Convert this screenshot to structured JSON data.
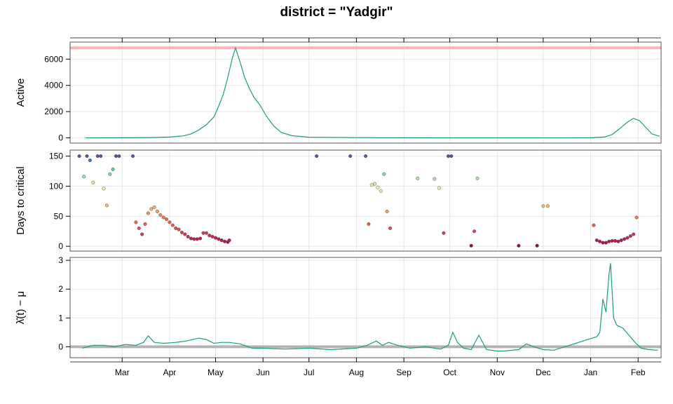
{
  "title": "district = \"Yadgir\"",
  "x_axis": {
    "type": "date",
    "range": [
      "2021-01-26",
      "2022-02-16"
    ],
    "ticks": [
      {
        "date": "2021-03-01",
        "label": "Mar"
      },
      {
        "date": "2021-04-01",
        "label": "Apr"
      },
      {
        "date": "2021-05-01",
        "label": "May"
      },
      {
        "date": "2021-06-01",
        "label": "Jun"
      },
      {
        "date": "2021-07-01",
        "label": "Jul"
      },
      {
        "date": "2021-08-01",
        "label": "Aug"
      },
      {
        "date": "2021-09-01",
        "label": "Sep"
      },
      {
        "date": "2021-10-01",
        "label": "Oct"
      },
      {
        "date": "2021-11-01",
        "label": "Nov"
      },
      {
        "date": "2021-12-01",
        "label": "Dec"
      },
      {
        "date": "2022-01-01",
        "label": "Jan"
      },
      {
        "date": "2022-02-01",
        "label": "Feb"
      }
    ]
  },
  "colors": {
    "line": "#1b9e77",
    "reference_line_active": "#ffb3b3",
    "reference_line_lambda": "#b3b3b3",
    "grid": "#e6e6e6",
    "frame": "#555555"
  },
  "chart_data": [
    {
      "type": "line",
      "ylabel": "Active",
      "ylim": [
        -400,
        7300
      ],
      "yticks": [
        0,
        2000,
        4000,
        6000
      ],
      "grid": true,
      "reference_line": 6860,
      "x": [
        "2021-02-05",
        "2021-03-01",
        "2021-03-20",
        "2021-04-01",
        "2021-04-10",
        "2021-04-15",
        "2021-04-20",
        "2021-04-25",
        "2021-04-30",
        "2021-05-03",
        "2021-05-06",
        "2021-05-09",
        "2021-05-12",
        "2021-05-14",
        "2021-05-17",
        "2021-05-20",
        "2021-05-23",
        "2021-05-26",
        "2021-05-30",
        "2021-06-03",
        "2021-06-08",
        "2021-06-13",
        "2021-06-20",
        "2021-07-01",
        "2021-08-01",
        "2021-09-01",
        "2021-10-01",
        "2021-11-01",
        "2021-12-01",
        "2022-01-01",
        "2022-01-10",
        "2022-01-15",
        "2022-01-20",
        "2022-01-25",
        "2022-01-29",
        "2022-02-02",
        "2022-02-06",
        "2022-02-10",
        "2022-02-15"
      ],
      "y": [
        0,
        5,
        25,
        60,
        150,
        300,
        600,
        1000,
        1600,
        2400,
        3300,
        4600,
        6100,
        6850,
        5800,
        4600,
        3800,
        3100,
        2500,
        1700,
        900,
        400,
        160,
        50,
        15,
        5,
        3,
        2,
        2,
        5,
        60,
        250,
        700,
        1200,
        1480,
        1300,
        800,
        300,
        120
      ]
    },
    {
      "type": "scatter",
      "ylabel": "Days to critical",
      "ylim": [
        -8,
        160
      ],
      "yticks": [
        0,
        50,
        100,
        150
      ],
      "grid": true,
      "color_scale": "Spectral (low = red, high = blue)",
      "x": [
        "2021-02-01",
        "2021-02-04",
        "2021-02-06",
        "2021-02-08",
        "2021-02-10",
        "2021-02-13",
        "2021-02-15",
        "2021-02-17",
        "2021-02-19",
        "2021-02-21",
        "2021-02-23",
        "2021-02-25",
        "2021-02-27",
        "2021-03-08",
        "2021-03-10",
        "2021-03-12",
        "2021-03-14",
        "2021-03-16",
        "2021-03-18",
        "2021-03-20",
        "2021-03-22",
        "2021-03-24",
        "2021-03-26",
        "2021-03-28",
        "2021-03-30",
        "2021-04-01",
        "2021-04-03",
        "2021-04-05",
        "2021-04-07",
        "2021-04-09",
        "2021-04-11",
        "2021-04-13",
        "2021-04-15",
        "2021-04-17",
        "2021-04-19",
        "2021-04-21",
        "2021-04-23",
        "2021-04-25",
        "2021-04-27",
        "2021-04-29",
        "2021-05-01",
        "2021-05-03",
        "2021-05-05",
        "2021-05-07",
        "2021-05-09",
        "2021-05-10",
        "2021-07-06",
        "2021-07-28",
        "2021-08-07",
        "2021-08-09",
        "2021-08-11",
        "2021-08-13",
        "2021-08-15",
        "2021-08-17",
        "2021-08-19",
        "2021-08-21",
        "2021-08-23",
        "2021-09-10",
        "2021-09-21",
        "2021-09-24",
        "2021-09-27",
        "2021-09-30",
        "2021-10-02",
        "2021-10-15",
        "2021-10-17",
        "2021-10-19",
        "2021-11-15",
        "2021-11-27",
        "2021-12-01",
        "2021-12-04",
        "2022-01-03",
        "2022-01-05",
        "2022-01-07",
        "2022-01-09",
        "2022-01-11",
        "2022-01-13",
        "2022-01-15",
        "2022-01-17",
        "2022-01-19",
        "2022-01-21",
        "2022-01-23",
        "2022-01-25",
        "2022-01-27",
        "2022-01-29",
        "2022-01-31"
      ],
      "y": [
        150,
        116,
        150,
        143,
        106,
        150,
        150,
        96,
        68,
        120,
        128,
        150,
        150,
        150,
        40,
        30,
        20,
        37,
        55,
        62,
        65,
        58,
        52,
        48,
        45,
        40,
        35,
        30,
        28,
        23,
        20,
        16,
        13,
        12,
        12,
        13,
        22,
        22,
        18,
        16,
        14,
        12,
        10,
        8,
        7,
        10,
        150,
        150,
        150,
        37,
        102,
        104,
        98,
        92,
        120,
        58,
        30,
        113,
        112,
        97,
        22,
        150,
        150,
        1,
        25,
        113,
        1,
        1,
        67,
        67,
        35,
        10,
        8,
        6,
        6,
        8,
        9,
        9,
        8,
        10,
        12,
        14,
        17,
        20,
        48
      ]
    },
    {
      "type": "line",
      "ylabel": "λ̂(t) − μ",
      "ylim": [
        -0.38,
        3.1
      ],
      "yticks": [
        0,
        1,
        2,
        3
      ],
      "grid": true,
      "reference_line": 0,
      "x": [
        "2021-02-03",
        "2021-02-10",
        "2021-02-17",
        "2021-02-24",
        "2021-03-03",
        "2021-03-10",
        "2021-03-15",
        "2021-03-18",
        "2021-03-22",
        "2021-03-28",
        "2021-04-05",
        "2021-04-12",
        "2021-04-20",
        "2021-04-25",
        "2021-04-30",
        "2021-05-05",
        "2021-05-10",
        "2021-05-17",
        "2021-05-25",
        "2021-06-01",
        "2021-06-15",
        "2021-07-01",
        "2021-07-15",
        "2021-08-01",
        "2021-08-08",
        "2021-08-14",
        "2021-08-18",
        "2021-08-22",
        "2021-08-28",
        "2021-09-05",
        "2021-09-15",
        "2021-09-25",
        "2021-09-30",
        "2021-10-03",
        "2021-10-06",
        "2021-10-10",
        "2021-10-15",
        "2021-10-20",
        "2021-10-25",
        "2021-11-01",
        "2021-11-05",
        "2021-11-15",
        "2021-11-20",
        "2021-11-25",
        "2021-12-01",
        "2021-12-08",
        "2022-01-05",
        "2022-01-07",
        "2022-01-09",
        "2022-01-11",
        "2022-01-13",
        "2022-01-14",
        "2022-01-16",
        "2022-01-18",
        "2022-01-22",
        "2022-01-26",
        "2022-01-30",
        "2022-02-03",
        "2022-02-08",
        "2022-02-14"
      ],
      "y": [
        -0.05,
        0.05,
        0.05,
        0.0,
        0.08,
        0.05,
        0.15,
        0.38,
        0.15,
        0.12,
        0.15,
        0.2,
        0.3,
        0.25,
        0.12,
        0.15,
        0.15,
        0.1,
        -0.05,
        -0.05,
        -0.08,
        -0.05,
        -0.1,
        -0.05,
        0.05,
        0.2,
        0.05,
        0.15,
        0.05,
        -0.05,
        0.0,
        -0.08,
        0.05,
        0.5,
        0.15,
        -0.05,
        -0.1,
        0.4,
        -0.1,
        -0.15,
        -0.15,
        -0.1,
        0.1,
        0.0,
        -0.1,
        -0.12,
        0.35,
        0.5,
        1.65,
        1.2,
        2.5,
        2.9,
        1.0,
        0.75,
        0.65,
        0.4,
        0.15,
        -0.05,
        -0.1,
        -0.12
      ]
    }
  ]
}
